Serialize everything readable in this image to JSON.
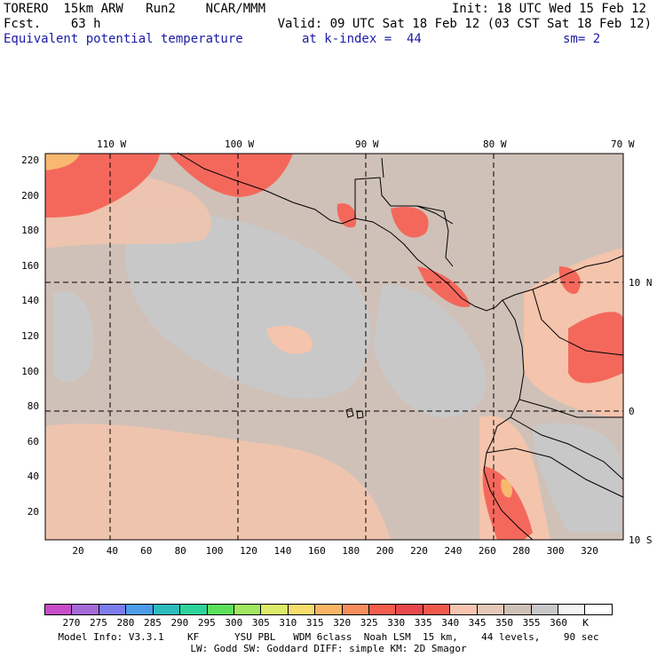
{
  "header": {
    "model": "TORERO  15km ARW   Run2    NCAR/MMM",
    "init": "Init: 18 UTC Wed 15 Feb 12",
    "fcst": "Fcst.    63 h",
    "valid": "Valid: 09 UTC Sat 18 Feb 12 (03 CST Sat 18 Feb 12)",
    "field": "Equivalent potential temperature",
    "level": "at k-index =  44",
    "smooth": "sm= 2"
  },
  "axes": {
    "lon_labels": [
      "110 W",
      "100 W",
      "90 W",
      "80 W",
      "70 W"
    ],
    "lat_labels": [
      "10 N",
      "0",
      "10 S"
    ],
    "x_ticks": [
      "20",
      "40",
      "60",
      "80",
      "100",
      "120",
      "140",
      "160",
      "180",
      "200",
      "220",
      "240",
      "260",
      "280",
      "300",
      "320"
    ],
    "y_ticks": [
      "220",
      "200",
      "180",
      "160",
      "140",
      "120",
      "100",
      "80",
      "60",
      "40",
      "20"
    ]
  },
  "colorbar": {
    "colors": [
      "#c84cc8",
      "#a46ad8",
      "#7c7cec",
      "#4c9ce8",
      "#2cbcbc",
      "#2cd49c",
      "#5ce05c",
      "#a0e860",
      "#dcec68",
      "#f8dc6c",
      "#f8b464",
      "#f88c5c",
      "#f45c4c",
      "#e8484c",
      "#f0584c",
      "#f8c4b0",
      "#e4c8b8",
      "#cfc1b8",
      "#c8c8c8",
      "#f4f4f4",
      "#ffffff"
    ],
    "labels": [
      "270",
      "275",
      "280",
      "285",
      "290",
      "295",
      "300",
      "305",
      "310",
      "315",
      "320",
      "325",
      "330",
      "335",
      "340",
      "345",
      "350",
      "355",
      "360",
      "K"
    ],
    "unit": "K"
  },
  "footer": {
    "line1": "Model Info: V3.3.1    KF      YSU PBL   WDM 6class  Noah LSM  15 km,    44 levels,    90 sec",
    "line2": "LW: Godd SW: Goddard DIFF: simple KM: 2D Smagor"
  },
  "map_colors": {
    "base": "#cfc1b8",
    "cool": "#c8c8c8",
    "warm": "#f4c4ac",
    "hot": "#f4685c",
    "hottest": "#f8b870",
    "land_line": "#000000",
    "grid_line": "#000000"
  }
}
